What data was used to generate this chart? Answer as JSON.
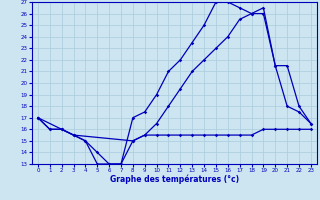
{
  "xlabel": "Graphe des températures (°c)",
  "bg_color": "#cce5f0",
  "grid_color": "#aaccdd",
  "line_color": "#0000bb",
  "xlim": [
    -0.5,
    23.5
  ],
  "ylim": [
    13,
    27
  ],
  "xticks": [
    0,
    1,
    2,
    3,
    4,
    5,
    6,
    7,
    8,
    9,
    10,
    11,
    12,
    13,
    14,
    15,
    16,
    17,
    18,
    19,
    20,
    21,
    22,
    23
  ],
  "yticks": [
    13,
    14,
    15,
    16,
    17,
    18,
    19,
    20,
    21,
    22,
    23,
    24,
    25,
    26,
    27
  ],
  "line1_x": [
    0,
    1,
    2,
    3,
    4,
    5,
    6,
    7,
    8,
    9,
    10,
    11,
    12,
    13,
    14,
    15,
    16,
    17,
    18,
    19,
    20,
    21,
    22,
    23
  ],
  "line1_y": [
    17,
    16,
    16,
    15.5,
    15,
    13,
    13,
    13,
    15,
    15.5,
    15.5,
    15.5,
    15.5,
    15.5,
    15.5,
    15.5,
    15.5,
    15.5,
    15.5,
    16,
    16,
    16,
    16,
    16
  ],
  "line2_x": [
    0,
    1,
    2,
    3,
    4,
    5,
    6,
    7,
    8,
    9,
    10,
    11,
    12,
    13,
    14,
    15,
    16,
    17,
    18,
    19,
    20,
    21,
    22,
    23
  ],
  "line2_y": [
    17,
    16,
    16,
    15.5,
    15,
    14,
    13,
    13,
    17,
    17.5,
    19,
    21,
    22,
    23.5,
    25,
    27,
    27,
    26.5,
    26,
    26,
    21.5,
    18,
    17.5,
    16.5
  ],
  "line3_x": [
    0,
    2,
    3,
    8,
    9,
    10,
    11,
    12,
    13,
    14,
    15,
    16,
    17,
    18,
    19,
    20,
    21,
    22,
    23
  ],
  "line3_y": [
    17,
    16,
    15.5,
    15,
    15.5,
    16.5,
    18,
    19.5,
    21,
    22,
    23,
    24,
    25.5,
    26,
    26.5,
    21.5,
    21.5,
    18,
    16.5
  ]
}
